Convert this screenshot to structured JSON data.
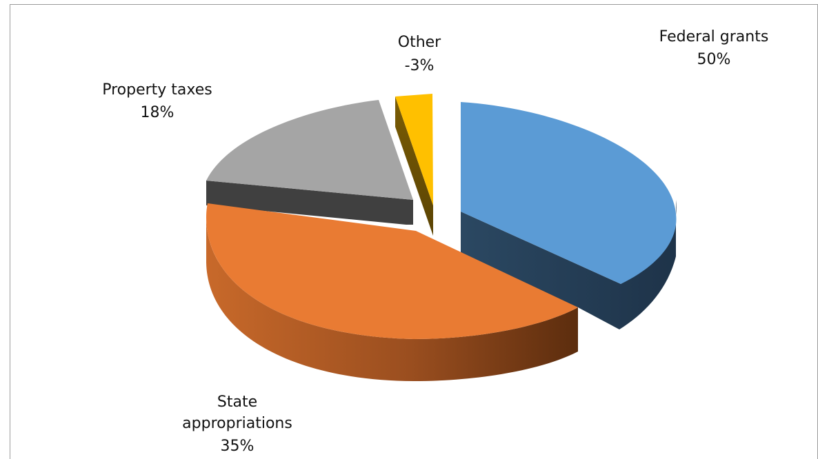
{
  "chart_data": {
    "type": "pie",
    "title": "",
    "three_d": true,
    "exploded": true,
    "legend": "none",
    "slices": [
      {
        "label": "Federal grants",
        "value": 50,
        "value_label": "50%",
        "color": "#5B9BD5"
      },
      {
        "label": "State appropriations",
        "value": 35,
        "value_label": "35%",
        "color": "#ED7D31"
      },
      {
        "label": "Property taxes",
        "value": 18,
        "value_label": "18%",
        "color": "#A5A5A5"
      },
      {
        "label": "Other",
        "value": -3,
        "value_label": "-3%",
        "color": "#FFC000"
      }
    ]
  }
}
